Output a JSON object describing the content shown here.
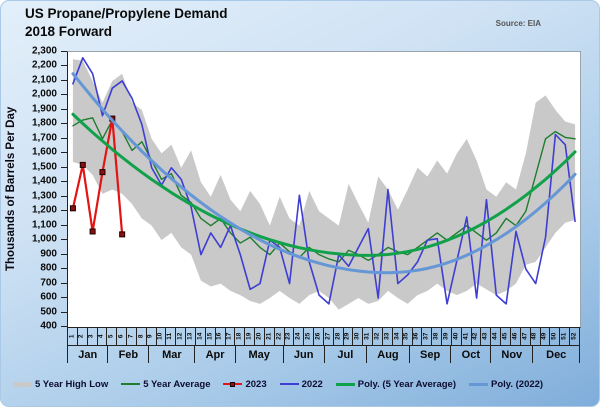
{
  "header": {
    "title_line1": "US Propane/Propylene Demand",
    "title_line2": "2018 Forward",
    "source": "Source: EIA"
  },
  "y_axis": {
    "title": "Thousands of Barrels Per Day",
    "tick_labels": [
      "2,300",
      "2,200",
      "2,100",
      "2,000",
      "1,900",
      "1,800",
      "1,700",
      "1,600",
      "1,500",
      "1,400",
      "1,300",
      "1,200",
      "1,100",
      "1,000",
      "900",
      "800",
      "700",
      "600",
      "500",
      "400"
    ]
  },
  "x_axis": {
    "week_labels": [
      "1",
      "2",
      "3",
      "4",
      "5",
      "6",
      "7",
      "8",
      "9",
      "10",
      "11",
      "12",
      "13",
      "14",
      "15",
      "16",
      "17",
      "18",
      "19",
      "20",
      "21",
      "22",
      "23",
      "24",
      "25",
      "26",
      "27",
      "28",
      "29",
      "30",
      "31",
      "32",
      "33",
      "34",
      "35",
      "36",
      "37",
      "38",
      "39",
      "40",
      "41",
      "42",
      "43",
      "44",
      "45",
      "46",
      "47",
      "48",
      "49",
      "50",
      "51",
      "52"
    ],
    "months": [
      {
        "label": "Jan",
        "weeks": 4
      },
      {
        "label": "Feb",
        "weeks": 4
      },
      {
        "label": "Mar",
        "weeks": 5
      },
      {
        "label": "Apr",
        "weeks": 4
      },
      {
        "label": "May",
        "weeks": 5
      },
      {
        "label": "Jun",
        "weeks": 4
      },
      {
        "label": "Jul",
        "weeks": 5
      },
      {
        "label": "Aug",
        "weeks": 4
      },
      {
        "label": "Sep",
        "weeks": 4
      },
      {
        "label": "Oct",
        "weeks": 4
      },
      {
        "label": "Nov",
        "weeks": 4
      },
      {
        "label": "Dec",
        "weeks": 5
      }
    ]
  },
  "legend": [
    {
      "label": "5 Year High Low",
      "swatch": "band",
      "color": "#c9c9c9"
    },
    {
      "label": "5 Year Average",
      "swatch": "line",
      "color": "#1e7d2e"
    },
    {
      "label": "2023",
      "swatch": "line-marker",
      "color": "#e21414",
      "marker_color": "#8e0f0f"
    },
    {
      "label": "2022",
      "swatch": "line",
      "color": "#3e3ed2"
    },
    {
      "label": "Poly. (5 Year Average)",
      "swatch": "line-thick",
      "color": "#12a14b"
    },
    {
      "label": "Poly. (2022)",
      "swatch": "line-thick",
      "color": "#6596d6"
    }
  ],
  "chart_data": {
    "type": "line",
    "title": "US Propane/Propylene Demand 2018 Forward",
    "source": "EIA",
    "xlabel": "",
    "ylabel": "Thousands of Barrels Per Day",
    "ylim": [
      400,
      2300
    ],
    "y_tick_step": 100,
    "grid": false,
    "legend_position": "bottom",
    "x_weeks": [
      1,
      2,
      3,
      4,
      5,
      6,
      7,
      8,
      9,
      10,
      11,
      12,
      13,
      14,
      15,
      16,
      17,
      18,
      19,
      20,
      21,
      22,
      23,
      24,
      25,
      26,
      27,
      28,
      29,
      30,
      31,
      32,
      33,
      34,
      35,
      36,
      37,
      38,
      39,
      40,
      41,
      42,
      43,
      44,
      45,
      46,
      47,
      48,
      49,
      50,
      51,
      52
    ],
    "band": {
      "name": "5 Year High Low",
      "color": "#c9c9c9",
      "high": [
        2250,
        2240,
        2100,
        1950,
        2100,
        2150,
        1950,
        1900,
        1700,
        1600,
        1660,
        1500,
        1620,
        1400,
        1300,
        1450,
        1280,
        1200,
        1340,
        1250,
        1100,
        1300,
        1150,
        1100,
        1340,
        1200,
        1150,
        1100,
        1390,
        1250,
        1120,
        1440,
        1350,
        1210,
        1350,
        1500,
        1440,
        1550,
        1460,
        1600,
        1700,
        1550,
        1350,
        1300,
        1400,
        1350,
        1600,
        1950,
        2000,
        1900,
        1820,
        1800
      ],
      "low": [
        1540,
        1520,
        1450,
        1320,
        1350,
        1320,
        1250,
        1150,
        1100,
        1000,
        1050,
        950,
        900,
        720,
        680,
        700,
        650,
        620,
        580,
        560,
        600,
        650,
        600,
        560,
        620,
        650,
        600,
        520,
        560,
        600,
        560,
        580,
        650,
        600,
        560,
        620,
        650,
        700,
        650,
        620,
        650,
        700,
        660,
        620,
        650,
        700,
        830,
        850,
        950,
        1050,
        1120,
        1140
      ]
    },
    "series": [
      {
        "key": "avg-5yr",
        "name": "5 Year Average",
        "color": "#1e7d2e",
        "width": 1.4,
        "values": [
          1790,
          1830,
          1845,
          1700,
          1830,
          1750,
          1620,
          1680,
          1550,
          1420,
          1460,
          1310,
          1260,
          1150,
          1100,
          1150,
          1050,
          980,
          1020,
          950,
          900,
          980,
          920,
          880,
          950,
          900,
          870,
          850,
          930,
          900,
          860,
          900,
          950,
          920,
          900,
          950,
          1000,
          1050,
          1000,
          1050,
          1100,
          1050,
          1000,
          1050,
          1150,
          1100,
          1200,
          1450,
          1700,
          1750,
          1710,
          1700
        ]
      },
      {
        "key": "y2023",
        "name": "2023",
        "color": "#e21414",
        "width": 2.2,
        "marker": "square",
        "marker_color": "#8e0f0f",
        "values": [
          1220,
          1520,
          1060,
          1470,
          1840,
          1040
        ]
      },
      {
        "key": "y2022",
        "name": "2022",
        "color": "#3e3ed2",
        "width": 1.6,
        "values": [
          2080,
          2260,
          2150,
          1860,
          2050,
          2100,
          1980,
          1800,
          1500,
          1380,
          1500,
          1420,
          1230,
          900,
          1050,
          950,
          1100,
          900,
          660,
          700,
          1000,
          950,
          700,
          1310,
          850,
          620,
          560,
          900,
          820,
          950,
          1080,
          600,
          1350,
          700,
          760,
          850,
          1000,
          1010,
          560,
          860,
          1160,
          600,
          1280,
          620,
          560,
          1060,
          800,
          700,
          1020,
          1730,
          1660,
          1130
        ]
      },
      {
        "key": "poly-5yr-avg",
        "name": "Poly. (5 Year Average)",
        "color": "#12a14b",
        "width": 3,
        "values": [
          1870,
          1806,
          1744,
          1685,
          1627,
          1572,
          1519,
          1468,
          1419,
          1373,
          1328,
          1286,
          1246,
          1208,
          1172,
          1139,
          1107,
          1078,
          1051,
          1026,
          1003,
          983,
          964,
          948,
          934,
          922,
          912,
          905,
          899,
          896,
          895,
          897,
          901,
          910,
          921,
          936,
          953,
          974,
          999,
          1026,
          1057,
          1091,
          1128,
          1169,
          1213,
          1260,
          1310,
          1364,
          1420,
          1480,
          1543,
          1610
        ]
      },
      {
        "key": "poly-2022",
        "name": "Poly. (2022)",
        "color": "#6596d6",
        "width": 3,
        "values": [
          2150,
          2066,
          1984,
          1904,
          1828,
          1754,
          1683,
          1614,
          1549,
          1485,
          1425,
          1367,
          1312,
          1260,
          1210,
          1163,
          1119,
          1077,
          1038,
          1002,
          968,
          937,
          909,
          884,
          861,
          841,
          823,
          809,
          796,
          787,
          780,
          776,
          775,
          777,
          783,
          792,
          805,
          822,
          843,
          867,
          896,
          928,
          963,
          1003,
          1046,
          1093,
          1144,
          1199,
          1257,
          1320,
          1385,
          1455
        ]
      }
    ]
  }
}
